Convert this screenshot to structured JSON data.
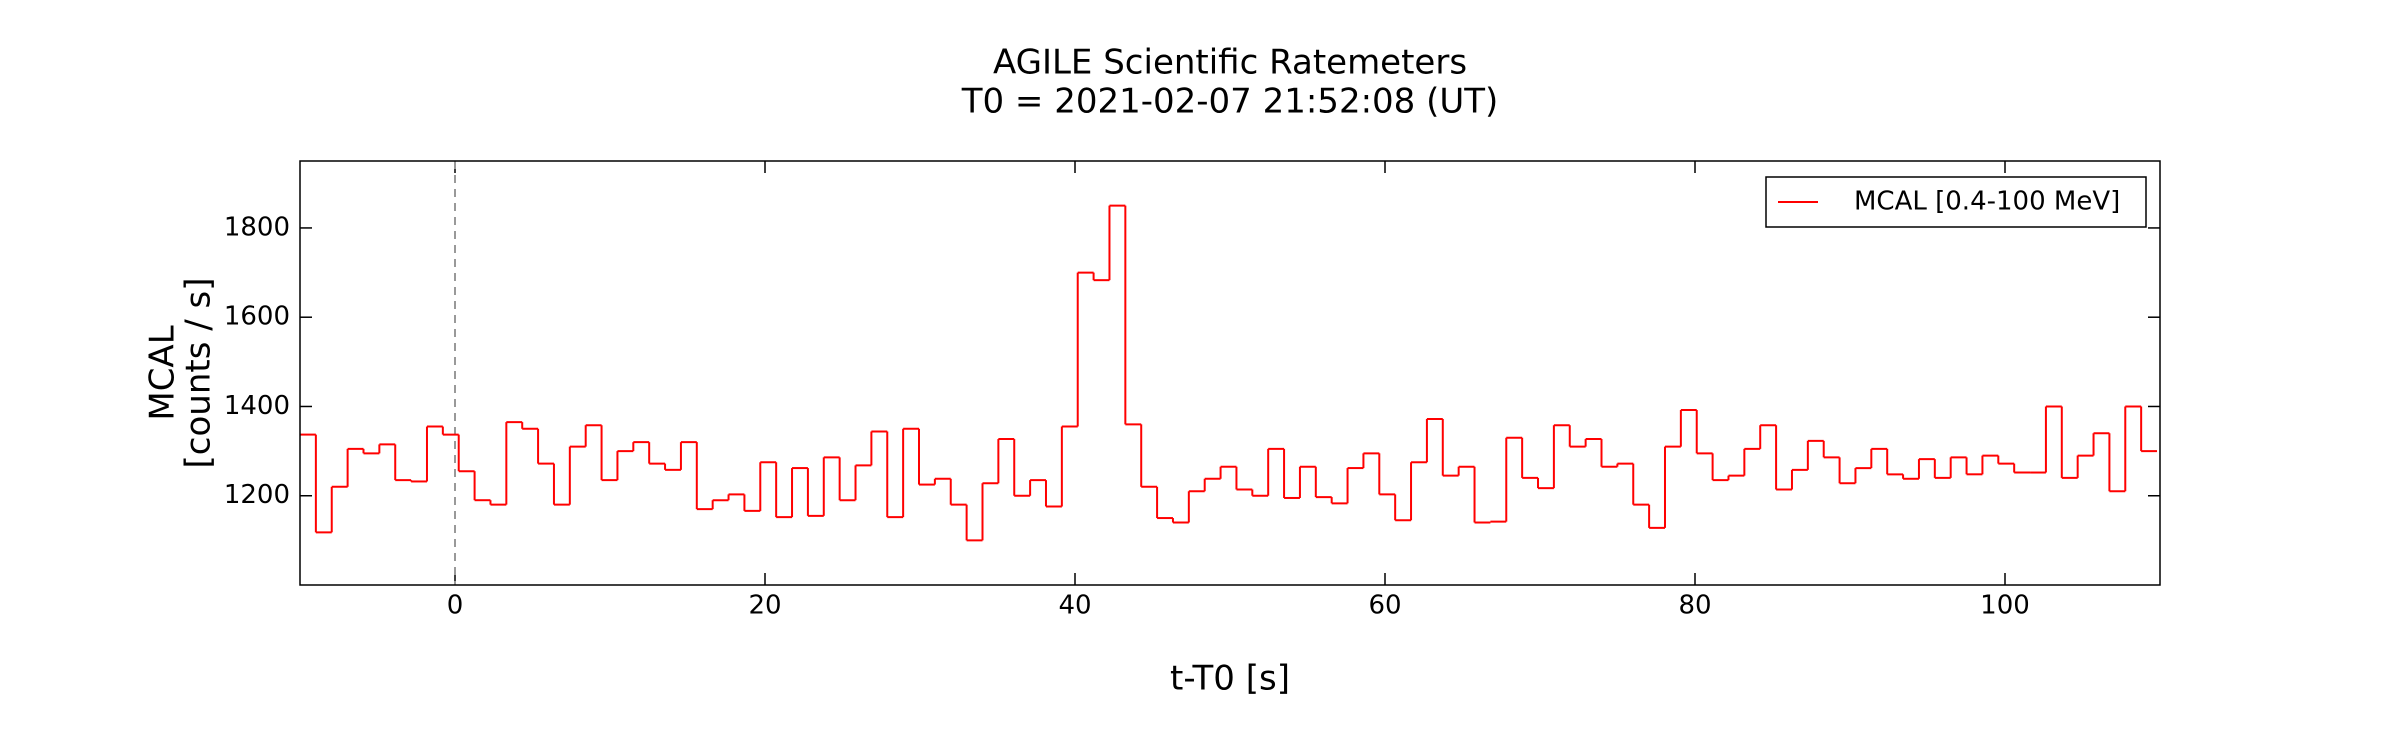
{
  "chart_data": {
    "type": "step",
    "title": [
      "AGILE Scientific Ratemeters",
      "T0 = 2021-02-07 21:52:08 (UT)"
    ],
    "xlabel": "t-T0 [s]",
    "ylabel": [
      "MCAL",
      "[counts / s]"
    ],
    "xlim": [
      -10,
      110
    ],
    "ylim": [
      1000,
      1950
    ],
    "xticks": [
      0,
      20,
      40,
      60,
      80,
      100
    ],
    "yticks": [
      1200,
      1400,
      1600,
      1800
    ],
    "vline": 0,
    "legend": "upper right",
    "series": [
      {
        "name": "MCAL [0.4-100 MeV]",
        "color": "#ff0000",
        "bins": [
          -10,
          -8.976,
          -7.952,
          -6.928,
          -5.904,
          -4.88,
          -3.856,
          -2.832,
          -1.808,
          -0.784,
          0.24,
          1.264,
          2.288,
          3.312,
          4.336,
          5.36,
          6.384,
          7.408,
          8.432,
          9.456,
          10.48,
          11.504,
          12.528,
          13.552,
          14.576,
          15.6,
          16.624,
          17.648,
          18.672,
          19.696,
          20.72,
          21.744,
          22.768,
          23.792,
          24.816,
          25.84,
          26.864,
          27.888,
          28.912,
          29.936,
          30.96,
          31.984,
          33.008,
          34.032,
          35.056,
          36.08,
          37.104,
          38.128,
          39.152,
          40.176,
          41.2,
          42.224,
          43.248,
          44.272,
          45.296,
          46.32,
          47.344,
          48.368,
          49.392,
          50.416,
          51.44,
          52.464,
          53.488,
          54.512,
          55.536,
          56.56,
          57.584,
          58.608,
          59.632,
          60.656,
          61.68,
          62.704,
          63.728,
          64.752,
          65.776,
          66.8,
          67.824,
          68.848,
          69.872,
          70.896,
          71.92,
          72.944,
          73.968,
          74.992,
          76.016,
          77.04,
          78.064,
          79.088,
          80.112,
          81.136,
          82.16,
          83.184,
          84.208,
          85.232,
          86.256,
          87.28,
          88.304,
          89.328,
          90.352,
          91.376,
          92.4,
          93.424,
          94.448,
          95.472,
          96.496,
          97.52,
          98.544,
          99.568,
          100.592,
          101.616,
          102.64,
          103.664,
          104.688,
          105.712,
          106.736,
          107.76,
          108.784,
          109.808
        ],
        "values": [
          1337,
          1118,
          1220,
          1305,
          1295,
          1315,
          1235,
          1232,
          1355,
          1337,
          1255,
          1190,
          1180,
          1365,
          1350,
          1272,
          1180,
          1310,
          1358,
          1235,
          1300,
          1320,
          1272,
          1258,
          1320,
          1170,
          1190,
          1203,
          1166,
          1275,
          1152,
          1262,
          1155,
          1286,
          1190,
          1268,
          1344,
          1152,
          1350,
          1225,
          1238,
          1180,
          1100,
          1228,
          1327,
          1200,
          1235,
          1176,
          1355,
          1700,
          1683,
          1850,
          1360,
          1220,
          1150,
          1140,
          1210,
          1238,
          1265,
          1214,
          1200,
          1305,
          1195,
          1265,
          1197,
          1183,
          1262,
          1295,
          1203,
          1145,
          1275,
          1372,
          1245,
          1265,
          1140,
          1142,
          1330,
          1240,
          1217,
          1358,
          1310,
          1327,
          1265,
          1272,
          1180,
          1128,
          1310,
          1392,
          1295,
          1235,
          1245,
          1305,
          1358,
          1214,
          1258,
          1323,
          1286,
          1228,
          1262,
          1305,
          1248,
          1238,
          1282,
          1240,
          1286,
          1248,
          1290,
          1272,
          1252,
          1252,
          1400,
          1240,
          1290,
          1340,
          1210,
          1400,
          1300
        ]
      }
    ]
  }
}
